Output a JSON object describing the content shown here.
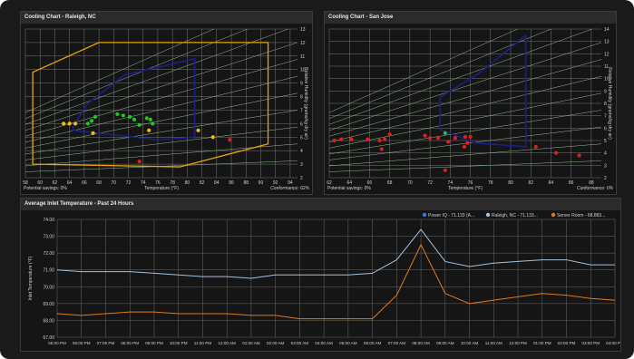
{
  "panels": {
    "raleigh": {
      "title": "Cooling Chart - Raleigh, NC",
      "savings": "Potential savings: 0%",
      "xlabel": "Temperature (°F)",
      "ylabel": "Relative Humidity (grams/kg dry air)",
      "conformance": "Conformance: 62%"
    },
    "sanjose": {
      "title": "Cooling Chart - San Jose",
      "savings": "Potential savings: 0%",
      "xlabel": "Temperature (°F)",
      "ylabel": "Relative Humidity (grams/kg dry air)",
      "conformance": "Conformance: 0%"
    },
    "inlet": {
      "title": "Average Inlet Temperature - Past 24 Hours"
    }
  },
  "colors": {
    "yellow": "#f0c000",
    "green": "#22c52a",
    "red": "#e02020",
    "blue_zone": "#1e1e8a",
    "orange_zone": "#e8a500",
    "series_power": "#2f7ed8",
    "series_raleigh": "#a6c0e0",
    "series_server": "#e07b1a"
  },
  "chart_data": [
    {
      "type": "scatter",
      "title": "Cooling Chart - Raleigh, NC",
      "xlabel": "Temperature (°F)",
      "ylabel": "Relative Humidity (grams/kg dry air)",
      "xlim": [
        58,
        95
      ],
      "ylim": [
        2,
        13
      ],
      "x_ticks": [
        58,
        60,
        62,
        64,
        66,
        68,
        70,
        72,
        74,
        76,
        78,
        80,
        82,
        84,
        86,
        88,
        90,
        92,
        94
      ],
      "y_ticks": [
        2,
        3,
        4,
        5,
        6,
        7,
        8,
        9,
        10,
        11,
        12,
        13
      ],
      "recommended_zone": [
        [
          64.5,
          5.8
        ],
        [
          66.5,
          7.5
        ],
        [
          71.5,
          9.6
        ],
        [
          81,
          10.8
        ],
        [
          81,
          5.0
        ],
        [
          76,
          4.8
        ],
        [
          64.5,
          5.5
        ]
      ],
      "allowable_zone": [
        [
          59,
          3.0
        ],
        [
          59,
          9.8
        ],
        [
          68,
          12.0
        ],
        [
          91,
          12.0
        ],
        [
          91,
          4.5
        ],
        [
          79,
          2.8
        ]
      ],
      "points": [
        {
          "x": 63.2,
          "y": 6.0,
          "c": "yellow"
        },
        {
          "x": 64.0,
          "y": 6.0,
          "c": "yellow"
        },
        {
          "x": 64.8,
          "y": 6.0,
          "c": "yellow"
        },
        {
          "x": 66.5,
          "y": 6.0,
          "c": "green"
        },
        {
          "x": 67.0,
          "y": 6.2,
          "c": "green"
        },
        {
          "x": 67.5,
          "y": 6.5,
          "c": "green"
        },
        {
          "x": 67.2,
          "y": 5.3,
          "c": "yellow"
        },
        {
          "x": 70.5,
          "y": 6.7,
          "c": "green"
        },
        {
          "x": 71.3,
          "y": 6.6,
          "c": "green"
        },
        {
          "x": 72.2,
          "y": 6.5,
          "c": "green"
        },
        {
          "x": 72.8,
          "y": 6.3,
          "c": "green"
        },
        {
          "x": 73.5,
          "y": 5.9,
          "c": "green"
        },
        {
          "x": 74.5,
          "y": 6.4,
          "c": "green"
        },
        {
          "x": 75.0,
          "y": 6.3,
          "c": "green"
        },
        {
          "x": 75.3,
          "y": 6.0,
          "c": "green"
        },
        {
          "x": 74.8,
          "y": 5.5,
          "c": "yellow"
        },
        {
          "x": 81.5,
          "y": 5.5,
          "c": "yellow"
        },
        {
          "x": 83.5,
          "y": 5.0,
          "c": "yellow"
        },
        {
          "x": 85.8,
          "y": 4.8,
          "c": "red"
        },
        {
          "x": 73.5,
          "y": 3.2,
          "c": "red"
        }
      ]
    },
    {
      "type": "scatter",
      "title": "Cooling Chart - San Jose",
      "xlabel": "Temperature (°F)",
      "ylabel": "Relative Humidity (grams/kg dry air)",
      "xlim": [
        62,
        89
      ],
      "ylim": [
        2,
        14
      ],
      "x_ticks": [
        62,
        64,
        66,
        68,
        70,
        72,
        74,
        76,
        78,
        80,
        82,
        84,
        86,
        88
      ],
      "y_ticks": [
        2,
        3,
        4,
        5,
        6,
        7,
        8,
        9,
        10,
        11,
        12,
        13,
        14
      ],
      "recommended_zone": [
        [
          73,
          5.9
        ],
        [
          73,
          8.5
        ],
        [
          77,
          10.5
        ],
        [
          81.5,
          13.5
        ],
        [
          81.5,
          4.5
        ],
        [
          76.5,
          4.8
        ]
      ],
      "points": [
        {
          "x": 62.5,
          "y": 5.0,
          "c": "red"
        },
        {
          "x": 63.2,
          "y": 5.1,
          "c": "red"
        },
        {
          "x": 64.2,
          "y": 5.1,
          "c": "red"
        },
        {
          "x": 65.8,
          "y": 5.1,
          "c": "red"
        },
        {
          "x": 67.0,
          "y": 5.0,
          "c": "red"
        },
        {
          "x": 67.5,
          "y": 5.1,
          "c": "red"
        },
        {
          "x": 68.0,
          "y": 5.5,
          "c": "red"
        },
        {
          "x": 67.2,
          "y": 4.3,
          "c": "red"
        },
        {
          "x": 71.5,
          "y": 5.4,
          "c": "red"
        },
        {
          "x": 72.0,
          "y": 5.2,
          "c": "red"
        },
        {
          "x": 72.8,
          "y": 5.2,
          "c": "red"
        },
        {
          "x": 73.5,
          "y": 5.6,
          "c": "green"
        },
        {
          "x": 73.8,
          "y": 4.9,
          "c": "red"
        },
        {
          "x": 74.5,
          "y": 5.2,
          "c": "red"
        },
        {
          "x": 75.5,
          "y": 5.3,
          "c": "red"
        },
        {
          "x": 76.0,
          "y": 5.3,
          "c": "red"
        },
        {
          "x": 75.7,
          "y": 4.8,
          "c": "red"
        },
        {
          "x": 75.4,
          "y": 4.5,
          "c": "red"
        },
        {
          "x": 73.5,
          "y": 2.6,
          "c": "red"
        },
        {
          "x": 82.5,
          "y": 4.5,
          "c": "red"
        },
        {
          "x": 84.5,
          "y": 4.0,
          "c": "red"
        },
        {
          "x": 86.8,
          "y": 3.8,
          "c": "red"
        }
      ]
    },
    {
      "type": "line",
      "title": "Average Inlet Temperature - Past 24 Hours",
      "ylabel": "Inlet Temperature (°F)",
      "ylim": [
        67.0,
        74.0
      ],
      "y_ticks": [
        "74.00",
        "73.00",
        "72.00",
        "71.00",
        "70.00",
        "69.00",
        "68.00",
        "67.00"
      ],
      "categories": [
        "05:00 PM",
        "06:00 PM",
        "07:00 PM",
        "08:00 PM",
        "09:00 PM",
        "10:00 PM",
        "11:00 PM",
        "12:00 AM",
        "01:00 AM",
        "02:00 AM",
        "03:00 AM",
        "04:00 AM",
        "05:00 AM",
        "06:00 AM",
        "07:00 AM",
        "08:00 AM",
        "09:00 AM",
        "10:00 AM",
        "11:00 AM",
        "12:00 PM",
        "01:00 PM",
        "02:00 PM",
        "03:00 PM",
        "04:00 PM"
      ],
      "legend": [
        {
          "name": "Power IQ - 71.133 (A...",
          "c": "series_power"
        },
        {
          "name": "Raleigh, NC - 71.133...",
          "c": "series_raleigh"
        },
        {
          "name": "Server Room - 68.883...",
          "c": "series_server"
        }
      ],
      "series": [
        {
          "name": "Raleigh, NC - 71.133...",
          "c": "series_raleigh",
          "values": [
            71.0,
            70.9,
            70.9,
            70.9,
            70.8,
            70.7,
            70.6,
            70.6,
            70.5,
            70.7,
            70.7,
            70.7,
            70.7,
            70.8,
            71.6,
            73.4,
            71.5,
            71.2,
            71.4,
            71.5,
            71.6,
            71.6,
            71.3,
            71.3
          ]
        },
        {
          "name": "Server Room - 68.883...",
          "c": "series_server",
          "values": [
            68.4,
            68.3,
            68.4,
            68.5,
            68.5,
            68.4,
            68.4,
            68.4,
            68.3,
            68.3,
            68.1,
            68.1,
            68.1,
            68.1,
            69.5,
            72.5,
            69.6,
            69.0,
            69.2,
            69.4,
            69.6,
            69.5,
            69.3,
            69.2
          ]
        }
      ]
    }
  ]
}
